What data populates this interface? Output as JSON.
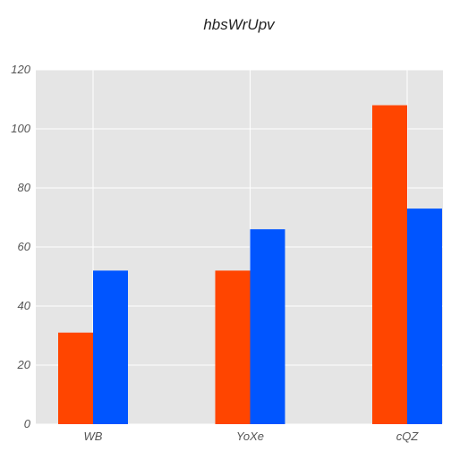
{
  "chart_data": {
    "type": "bar",
    "title": "hbsWrUpv",
    "xlabel": "",
    "ylabel": "",
    "categories": [
      "WB",
      "YoXe",
      "cQZ"
    ],
    "series": [
      {
        "values": [
          31,
          52,
          108
        ],
        "color": "#ff4500"
      },
      {
        "values": [
          52,
          66,
          73
        ],
        "color": "#0055ff"
      }
    ],
    "ylim": [
      0,
      120
    ],
    "yticks": [
      0,
      20,
      40,
      60,
      80,
      100,
      120
    ],
    "grid": true,
    "legend": "none",
    "background": "#e5e5e5",
    "grid_color": "#ffffff"
  }
}
